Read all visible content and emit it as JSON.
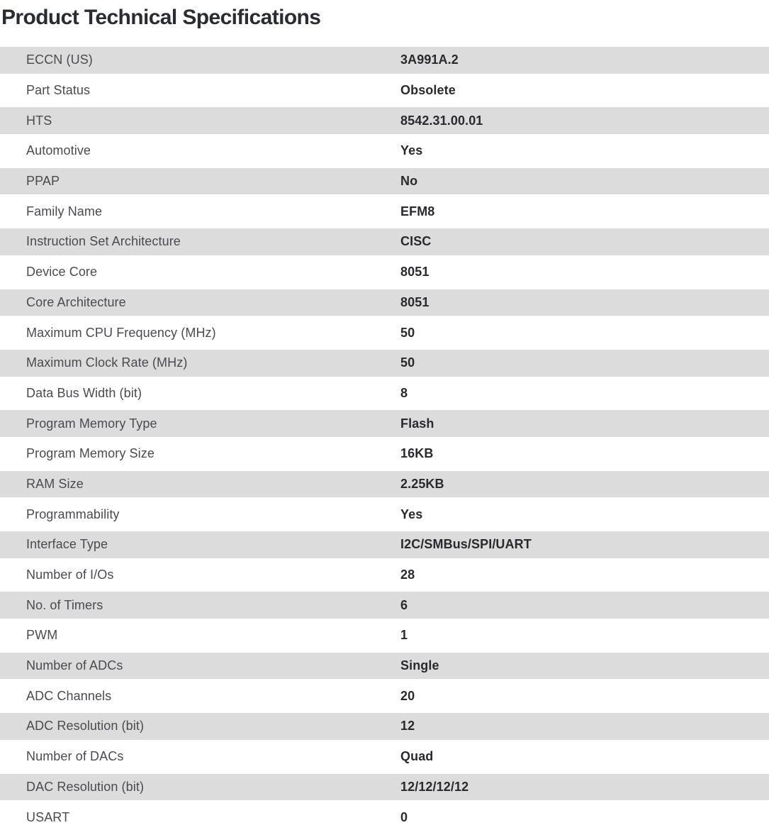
{
  "page": {
    "title": "Product Technical Specifications"
  },
  "colors": {
    "stripe_gray": "#dcdcdc",
    "label_text": "#4a4a50",
    "value_text": "#29292e",
    "title_text": "#2b2c33",
    "background": "#ffffff"
  },
  "spec_table": {
    "rows": [
      {
        "label": "ECCN (US)",
        "value": "3A991A.2"
      },
      {
        "label": "Part Status",
        "value": "Obsolete"
      },
      {
        "label": "HTS",
        "value": "8542.31.00.01"
      },
      {
        "label": "Automotive",
        "value": "Yes"
      },
      {
        "label": "PPAP",
        "value": "No"
      },
      {
        "label": "Family Name",
        "value": "EFM8"
      },
      {
        "label": "Instruction Set Architecture",
        "value": "CISC"
      },
      {
        "label": "Device Core",
        "value": "8051"
      },
      {
        "label": "Core Architecture",
        "value": "8051"
      },
      {
        "label": "Maximum CPU Frequency (MHz)",
        "value": "50"
      },
      {
        "label": "Maximum Clock Rate (MHz)",
        "value": "50"
      },
      {
        "label": "Data Bus Width (bit)",
        "value": "8"
      },
      {
        "label": "Program Memory Type",
        "value": "Flash"
      },
      {
        "label": "Program Memory Size",
        "value": "16KB"
      },
      {
        "label": "RAM Size",
        "value": "2.25KB"
      },
      {
        "label": "Programmability",
        "value": "Yes"
      },
      {
        "label": "Interface Type",
        "value": "I2C/SMBus/SPI/UART"
      },
      {
        "label": "Number of I/Os",
        "value": "28"
      },
      {
        "label": "No. of Timers",
        "value": "6"
      },
      {
        "label": "PWM",
        "value": "1"
      },
      {
        "label": "Number of ADCs",
        "value": "Single"
      },
      {
        "label": "ADC Channels",
        "value": "20"
      },
      {
        "label": "ADC Resolution (bit)",
        "value": "12"
      },
      {
        "label": "Number of DACs",
        "value": "Quad"
      },
      {
        "label": "DAC Resolution (bit)",
        "value": "12/12/12/12"
      },
      {
        "label": "USART",
        "value": "0"
      }
    ]
  }
}
